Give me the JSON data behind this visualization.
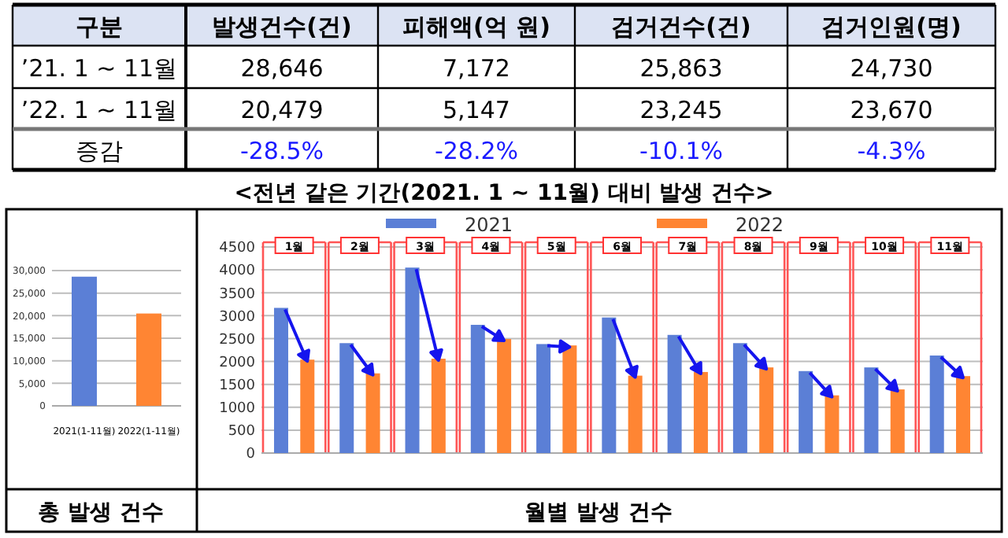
{
  "chart_data": [
    {
      "type": "other",
      "annotations": [
        "구분",
        "발생건수(건)",
        "피해액(억 원)",
        "검거건수(건)",
        "검거인원(명)",
        "’21. 1 ~ 11월",
        "28,646",
        "7,172",
        "25,863",
        "24,730",
        "’22. 1 ~ 11월",
        "20,479",
        "5,147",
        "23,245",
        "23,670",
        "증감",
        "-28.5%",
        "-28.2%",
        "-10.1%",
        "-4.3%",
        "<전년 같은 기간(2021. 1 ~ 11월) 대비 발생 건수>"
      ]
    },
    {
      "type": "bar",
      "categories": [
        "2021(1-11월)",
        "2022(1-11월)"
      ],
      "values": [
        28646,
        20479
      ],
      "colors": [
        "#5b7fd6",
        "#ff8533"
      ],
      "ylim": [
        0,
        30000
      ],
      "yticks": [
        {
          "value": 0,
          "label": "0"
        },
        {
          "value": 5000,
          "label": "5,000"
        },
        {
          "value": 10000,
          "label": "10,000"
        },
        {
          "value": 15000,
          "label": "15,000"
        },
        {
          "value": 20000,
          "label": "20,000"
        },
        {
          "value": 25000,
          "label": "25,000"
        },
        {
          "value": 30000,
          "label": "30,000"
        }
      ],
      "grid": "y",
      "xlabel": "총 발생 건수"
    },
    {
      "type": "bar",
      "categories": [
        "1월",
        "2월",
        "3월",
        "4월",
        "5월",
        "6월",
        "7월",
        "8월",
        "9월",
        "10월",
        "11월"
      ],
      "series": [
        {
          "name": "2021",
          "color": "#5b7fd6",
          "values": [
            3170,
            2400,
            4050,
            2800,
            2380,
            2960,
            2580,
            2400,
            1790,
            1870,
            2130
          ]
        },
        {
          "name": "2022",
          "color": "#ff8533",
          "values": [
            2040,
            1740,
            2060,
            2490,
            2350,
            1690,
            1770,
            1870,
            1260,
            1390,
            1680
          ]
        }
      ],
      "ylim": [
        0,
        4500
      ],
      "yticks": [
        0,
        500,
        1000,
        1500,
        2000,
        2500,
        3000,
        3500,
        4000,
        4500
      ],
      "grid": "y",
      "legend": "top",
      "xlabel": "월별 발생 건수"
    }
  ]
}
